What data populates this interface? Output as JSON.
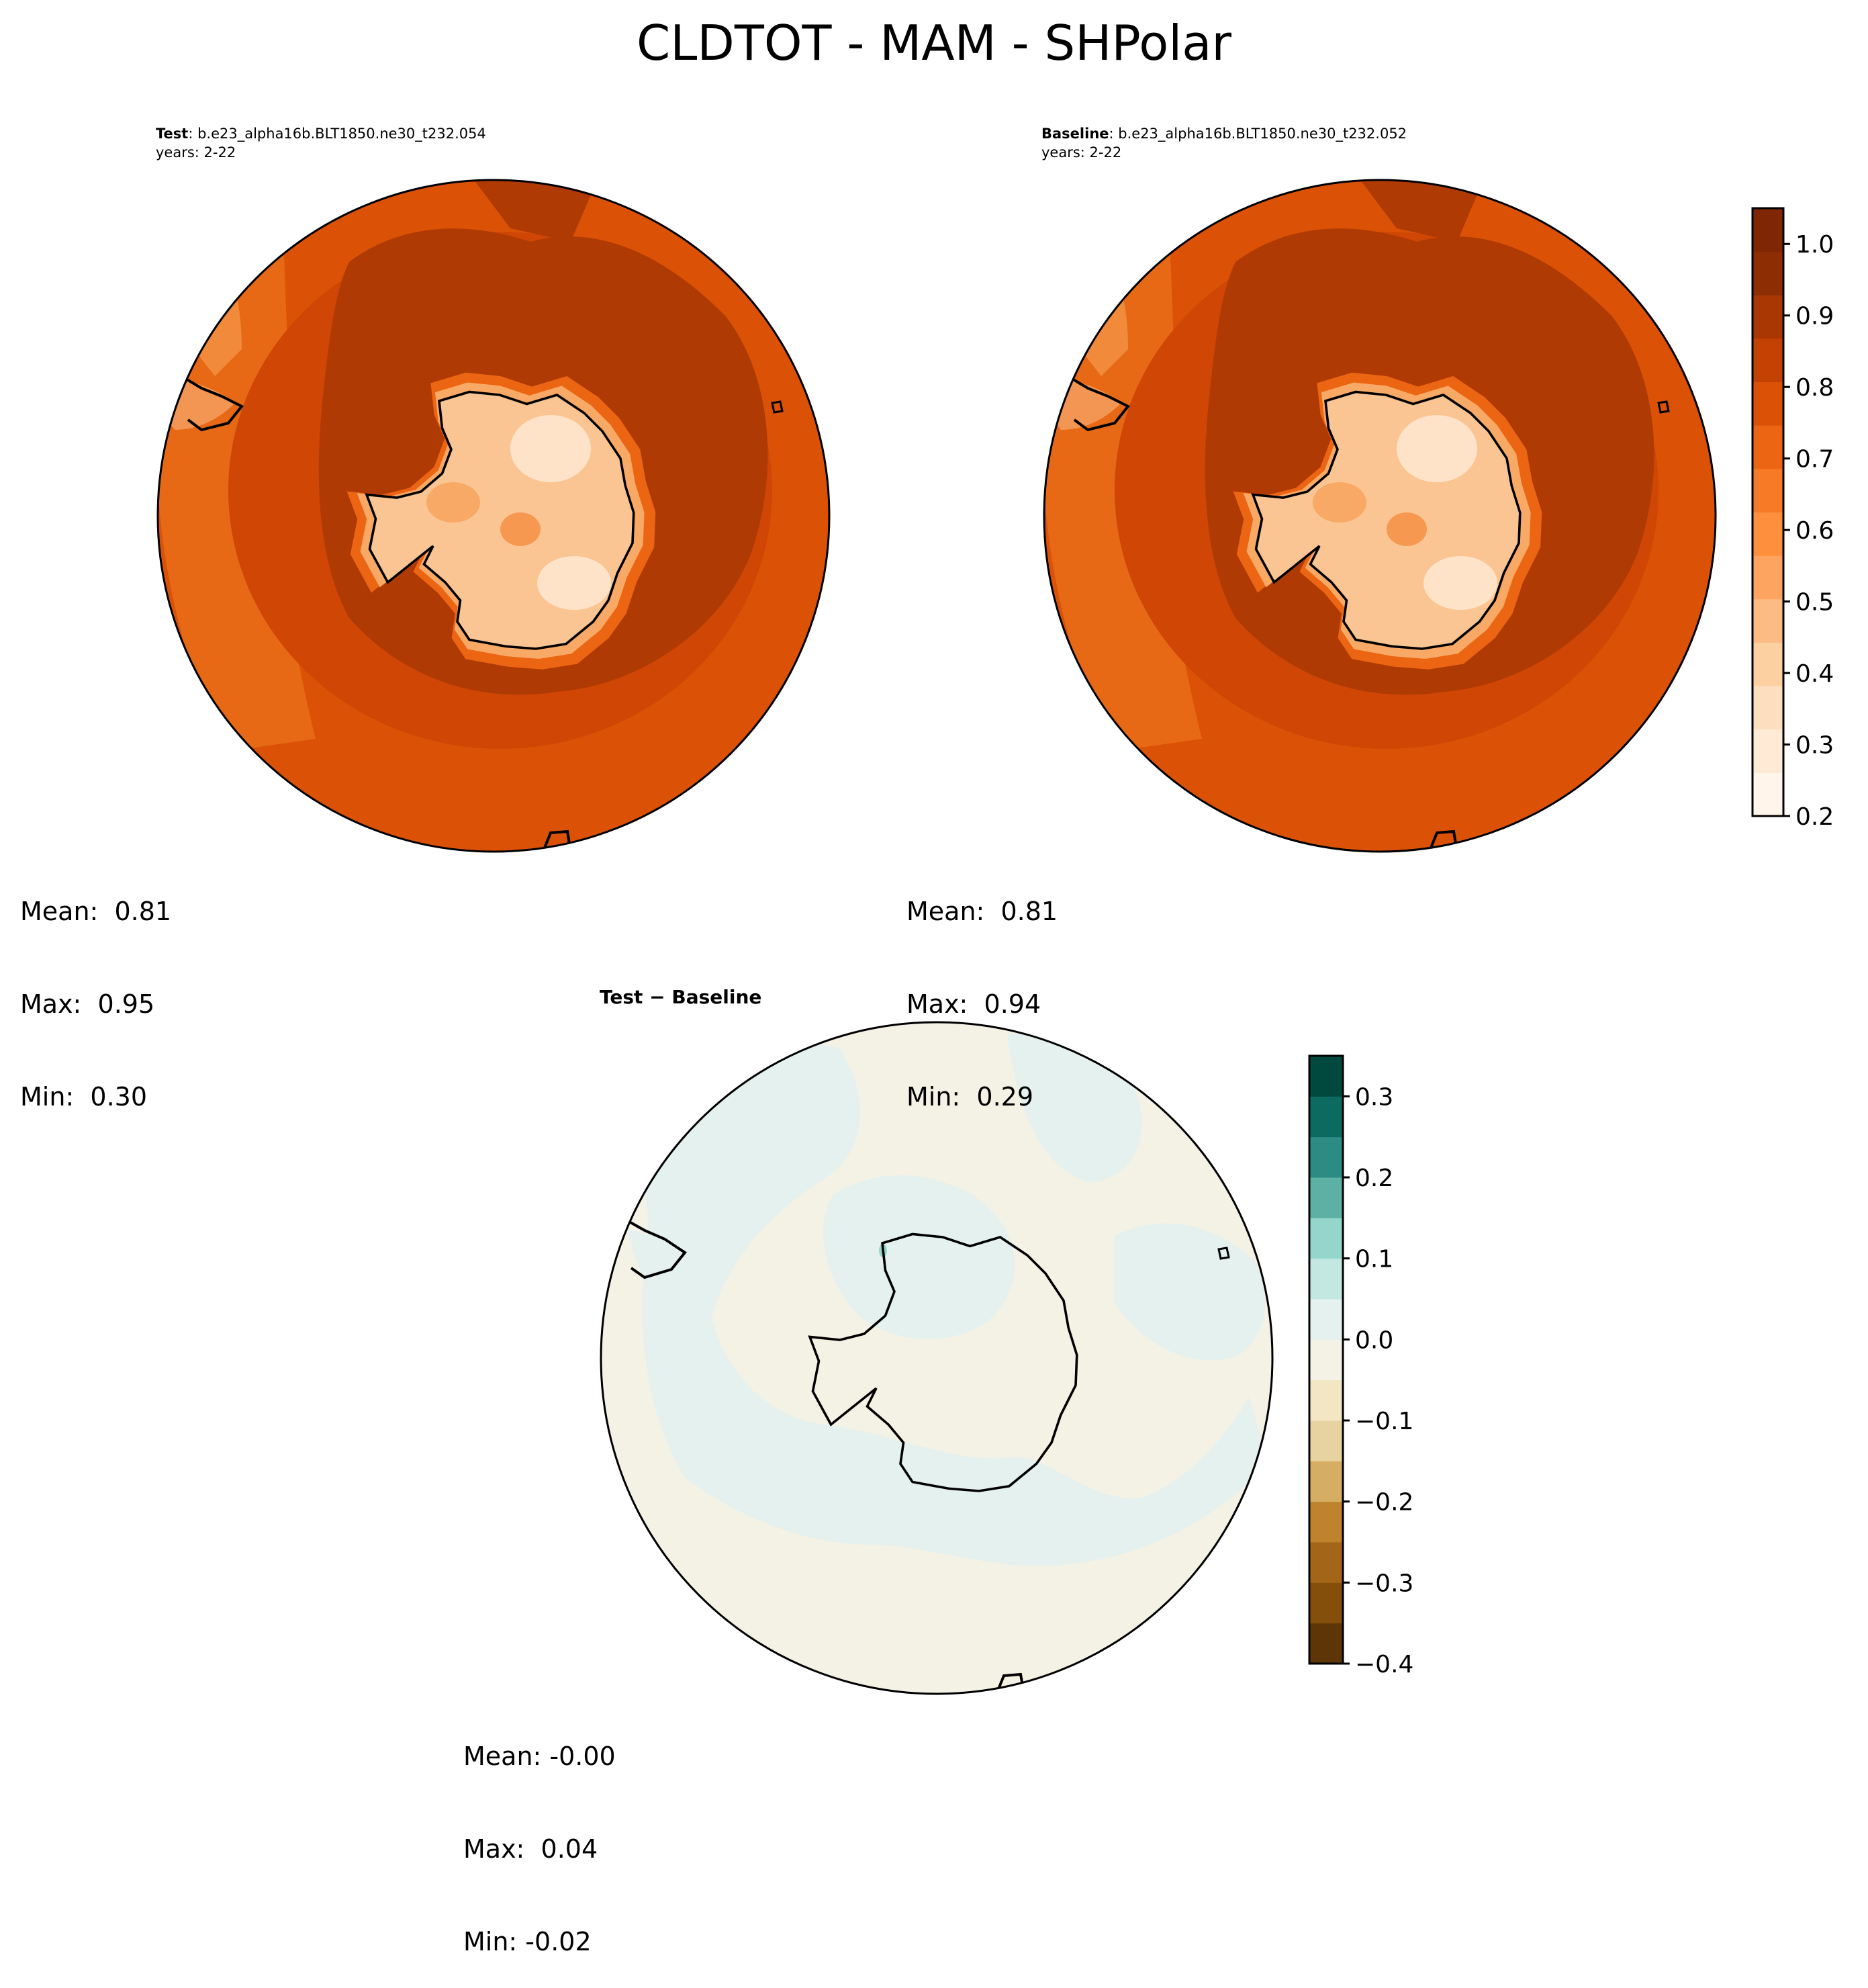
{
  "title": "CLDTOT - MAM - SHPolar",
  "panels": [
    {
      "title_bold": "Test",
      "title_rest": ": b.e23_alpha16b.BLT1850.ne30_t232.054",
      "subtitle": "years: 2-22",
      "mean_label": "Mean:  0.81",
      "max_label": "Max:  0.95",
      "min_label": "Min:  0.30"
    },
    {
      "title_bold": "Baseline",
      "title_rest": ": b.e23_alpha16b.BLT1850.ne30_t232.052",
      "subtitle": "years: 2-22",
      "mean_label": "Mean:  0.81",
      "max_label": "Max:  0.94",
      "min_label": "Min:  0.29"
    },
    {
      "title_bold": "Test − Baseline",
      "mean_label": "Mean: -0.00",
      "max_label": "Max:  0.04",
      "min_label": "Min: -0.02"
    }
  ],
  "chart_data": [
    {
      "type": "heatmap",
      "name": "Test",
      "projection": "south-polar-stereographic",
      "colormap": "Oranges",
      "stats": {
        "mean": 0.81,
        "max": 0.95,
        "min": 0.3
      }
    },
    {
      "type": "heatmap",
      "name": "Baseline",
      "projection": "south-polar-stereographic",
      "colormap": "Oranges",
      "stats": {
        "mean": 0.81,
        "max": 0.94,
        "min": 0.29
      }
    },
    {
      "type": "heatmap",
      "name": "Test - Baseline",
      "projection": "south-polar-stereographic",
      "colormap": "BrBG",
      "stats": {
        "mean": -0.0,
        "max": 0.04,
        "min": -0.02
      }
    }
  ],
  "colorbars": {
    "main": {
      "range": [
        0.2,
        1.05
      ],
      "ticks": [
        "0.2",
        "0.3",
        "0.4",
        "0.5",
        "0.6",
        "0.7",
        "0.8",
        "0.9",
        "1.0"
      ],
      "tick_values": [
        0.2,
        0.3,
        0.4,
        0.5,
        0.6,
        0.7,
        0.8,
        0.9,
        1.0
      ],
      "colors": [
        "#fff5eb",
        "#feead5",
        "#fddfc0",
        "#fdd0a2",
        "#fdbb84",
        "#fda560",
        "#fd8f3d",
        "#f77b26",
        "#ec6513",
        "#db5206",
        "#c34103",
        "#a83703",
        "#8c2d04",
        "#7f2704"
      ]
    },
    "diff": {
      "range": [
        -0.4,
        0.35
      ],
      "ticks": [
        "−0.4",
        "−0.3",
        "−0.2",
        "−0.1",
        "0.0",
        "0.1",
        "0.2",
        "0.3"
      ],
      "tick_values": [
        -0.4,
        -0.3,
        -0.2,
        -0.1,
        0.0,
        0.1,
        0.2,
        0.3
      ],
      "colors": [
        "#5e3507",
        "#844e0b",
        "#a36619",
        "#bf832d",
        "#d5ad63",
        "#e7d3a0",
        "#f3e6c2",
        "#f4f1e5",
        "#e5f1ee",
        "#c3e8e2",
        "#94d6cb",
        "#5db1a4",
        "#2c8b82",
        "#0c6b61",
        "#01493e"
      ]
    }
  },
  "colors": {
    "ocean_band_deep": "#b03a04",
    "ocean_band_mid": "#cf4605",
    "ocean_band_outer": "#db5206",
    "ocean_band_rim": "#e76815",
    "coast_halo": "#f2a35e",
    "continent": "#fbd0a6",
    "diff_neutral": "#f4f1e5",
    "diff_pos": "#e5f1ee"
  }
}
